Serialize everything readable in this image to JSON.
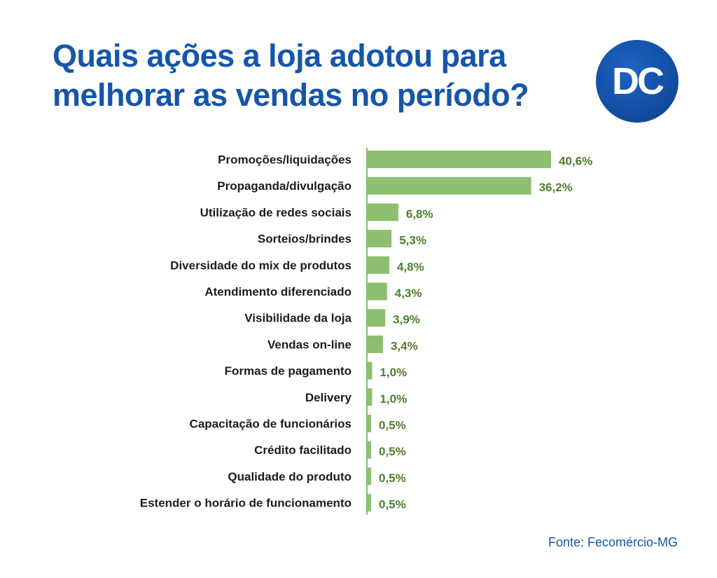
{
  "header": {
    "title": "Quais ações a loja adotou para melhorar as vendas no período?",
    "logo_text": "DC"
  },
  "chart_data": {
    "type": "bar",
    "orientation": "horizontal",
    "categories": [
      "Promoções/liquidações",
      "Propaganda/divulgação",
      "Utilização de redes sociais",
      "Sorteios/brindes",
      "Diversidade do mix de produtos",
      "Atendimento diferenciado",
      "Visibilidade da loja",
      "Vendas on-line",
      "Formas de pagamento",
      "Delivery",
      "Capacitação de funcionários",
      "Crédito facilitado",
      "Qualidade do produto",
      "Estender o horário de funcionamento"
    ],
    "values": [
      40.6,
      36.2,
      6.8,
      5.3,
      4.8,
      4.3,
      3.9,
      3.4,
      1.0,
      1.0,
      0.5,
      0.5,
      0.5,
      0.5
    ],
    "value_labels": [
      "40,6%",
      "36,2%",
      "6,8%",
      "5,3%",
      "4,8%",
      "4,3%",
      "3,9%",
      "3,4%",
      "1,0%",
      "1,0%",
      "0,5%",
      "0,5%",
      "0,5%",
      "0,5%"
    ],
    "bar_color": "#8cbf6e",
    "label_color": "#4f7f2e",
    "grid": false,
    "legend": false
  },
  "footer": {
    "source": "Fonte: Fecomércio-MG"
  },
  "colors": {
    "title": "#1656a8",
    "logo": "#1350a6"
  }
}
